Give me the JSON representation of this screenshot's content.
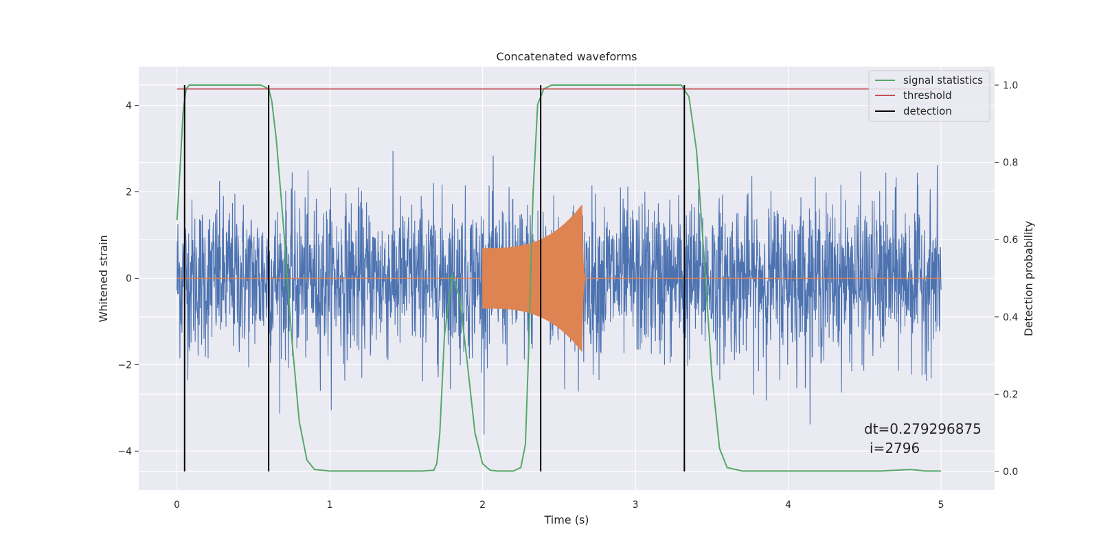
{
  "chart_data": {
    "type": "line",
    "title": "Concatenated waveforms",
    "xlabel": "Time (s)",
    "ylabel": "Whitened strain",
    "y2label": "Detection probability",
    "xlim": [
      -0.25,
      5.35
    ],
    "ylim": [
      -4.9,
      4.9
    ],
    "y2lim": [
      -0.048,
      1.048
    ],
    "xticks": [
      0,
      1,
      2,
      3,
      4,
      5
    ],
    "yticks": [
      -4,
      -2,
      0,
      2,
      4
    ],
    "y2ticks": [
      0.0,
      0.2,
      0.4,
      0.6,
      0.8,
      1.0
    ],
    "grid": true,
    "legend_position": "top-right",
    "colors": {
      "background": "#eaeaf2",
      "grid": "#ffffff",
      "noise": "#4c72b0",
      "injection": "#dd8452",
      "signal_statistics": "#55a868",
      "threshold": "#c44e52",
      "detection": "#000000"
    },
    "series": [
      {
        "name": "signal statistics",
        "axis": "right",
        "x": [
          0,
          0.02,
          0.04,
          0.06,
          0.08,
          0.1,
          0.2,
          0.4,
          0.55,
          0.6,
          0.62,
          0.65,
          0.7,
          0.75,
          0.8,
          0.85,
          0.9,
          1.0,
          1.3,
          1.6,
          1.68,
          1.7,
          1.72,
          1.75,
          1.8,
          1.85,
          1.9,
          1.95,
          2.0,
          2.05,
          2.1,
          2.2,
          2.25,
          2.28,
          2.3,
          2.33,
          2.36,
          2.4,
          2.45,
          2.5,
          3.0,
          3.3,
          3.35,
          3.4,
          3.45,
          3.5,
          3.55,
          3.6,
          3.7,
          4.0,
          4.6,
          4.8,
          4.9,
          5.0
        ],
        "values": [
          0.65,
          0.78,
          0.93,
          0.99,
          1.0,
          1.0,
          1.0,
          1.0,
          1.0,
          0.99,
          0.96,
          0.86,
          0.62,
          0.35,
          0.13,
          0.03,
          0.005,
          0.001,
          0.001,
          0.001,
          0.003,
          0.02,
          0.1,
          0.35,
          0.51,
          0.45,
          0.28,
          0.1,
          0.02,
          0.003,
          0.001,
          0.001,
          0.01,
          0.07,
          0.3,
          0.72,
          0.95,
          0.99,
          1.0,
          1.0,
          1.0,
          1.0,
          0.97,
          0.83,
          0.55,
          0.25,
          0.06,
          0.01,
          0.001,
          0.001,
          0.001,
          0.005,
          0.001,
          0.001
        ]
      },
      {
        "name": "threshold",
        "axis": "right",
        "x": [
          0,
          5
        ],
        "values": [
          0.99,
          0.99
        ]
      },
      {
        "name": "detection",
        "axis": "right",
        "type": "vlines",
        "x": [
          0.05,
          0.6,
          2.38,
          3.32
        ],
        "ymin": 0.0,
        "ymax": 1.0
      }
    ],
    "background_signals": {
      "whitened_strain": {
        "x_range": [
          0,
          5
        ],
        "rms": 0.9,
        "peak_max": 3.9,
        "peak_min": -4.55
      },
      "injected_waveform": {
        "x_range": [
          2.0,
          2.67
        ],
        "envelope_start": 0.7,
        "envelope_peak": 1.7,
        "peak_time": 2.65,
        "min_value": -2.3
      }
    },
    "annotation": {
      "line1": "dt=0.279296875",
      "line2": "i=2796"
    }
  }
}
